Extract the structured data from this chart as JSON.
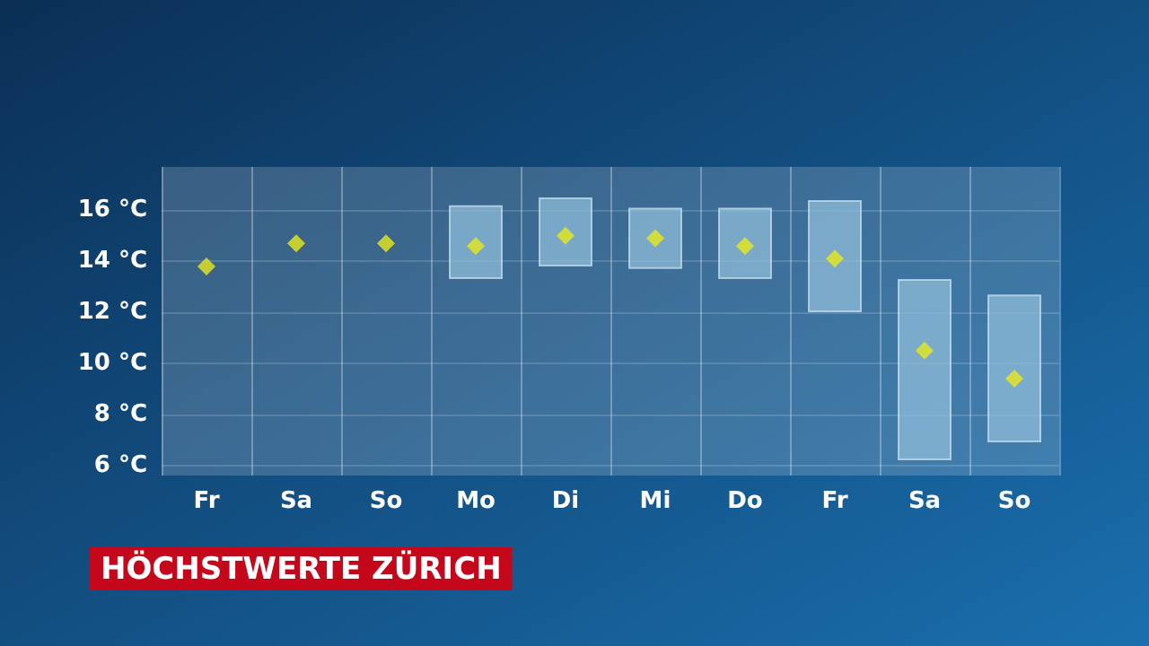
{
  "chart_data": {
    "type": "bar",
    "title": "HÖCHSTWERTE ZÜRICH",
    "categories": [
      "Fr",
      "Sa",
      "So",
      "Mo",
      "Di",
      "Mi",
      "Do",
      "Fr",
      "Sa",
      "So"
    ],
    "series": [
      {
        "color": "#8fbcd8",
        "base": [
          null,
          null,
          null,
          13.3,
          13.8,
          13.7,
          13.3,
          12.0,
          6.2,
          6.9
        ],
        "values": [
          null,
          null,
          null,
          2.9,
          2.7,
          2.4,
          2.8,
          4.4,
          7.1,
          5.8
        ]
      },
      {
        "type": "scatter",
        "color": "#e8e81a",
        "marker": "diamond",
        "values": [
          13.8,
          14.7,
          14.7,
          14.6,
          15.0,
          14.9,
          14.6,
          14.1,
          10.5,
          9.4
        ]
      }
    ],
    "ylim": [
      5.6,
      17.7
    ],
    "yticks": [
      {
        "value": 6,
        "label": "6 °C"
      },
      {
        "value": 8,
        "label": "8 °C"
      },
      {
        "value": 10,
        "label": "10 °C"
      },
      {
        "value": 12,
        "label": "12 °C"
      },
      {
        "value": 14,
        "label": "14 °C"
      },
      {
        "value": 16,
        "label": "16 °C"
      }
    ],
    "grid": true
  }
}
